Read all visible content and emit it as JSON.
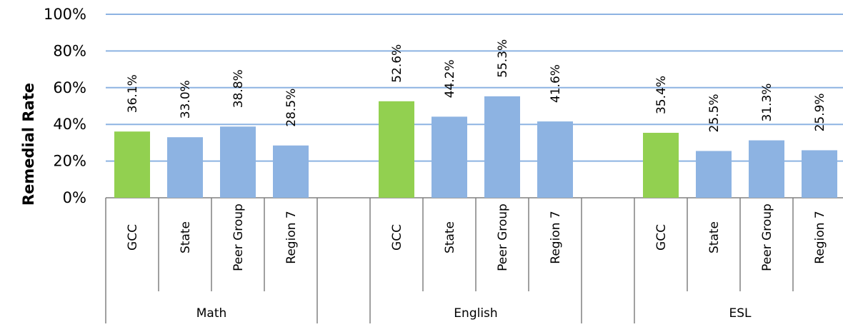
{
  "chart_data": {
    "type": "bar",
    "ylabel": "Remedial Rate",
    "ylim": [
      0,
      100
    ],
    "yticks": [
      0,
      20,
      40,
      60,
      80,
      100
    ],
    "ytick_labels": [
      "0%",
      "20%",
      "40%",
      "60%",
      "80%",
      "100%"
    ],
    "grid": true,
    "groups": [
      {
        "name": "Math",
        "bars": [
          {
            "category": "GCC",
            "value": 36.1,
            "label": "36.1%"
          },
          {
            "category": "State",
            "value": 33.0,
            "label": "33.0%"
          },
          {
            "category": "Peer Group",
            "value": 38.8,
            "label": "38.8%"
          },
          {
            "category": "Region 7",
            "value": 28.5,
            "label": "28.5%"
          }
        ]
      },
      {
        "name": "English",
        "bars": [
          {
            "category": "GCC",
            "value": 52.6,
            "label": "52.6%"
          },
          {
            "category": "State",
            "value": 44.2,
            "label": "44.2%"
          },
          {
            "category": "Peer Group",
            "value": 55.3,
            "label": "55.3%"
          },
          {
            "category": "Region 7",
            "value": 41.6,
            "label": "41.6%"
          }
        ]
      },
      {
        "name": "ESL",
        "bars": [
          {
            "category": "GCC",
            "value": 35.4,
            "label": "35.4%"
          },
          {
            "category": "State",
            "value": 25.5,
            "label": "25.5%"
          },
          {
            "category": "Peer Group",
            "value": 31.3,
            "label": "31.3%"
          },
          {
            "category": "Region 7",
            "value": 25.9,
            "label": "25.9%"
          }
        ]
      }
    ],
    "colors": {
      "highlight": "#92d050",
      "bar": "#8db3e2",
      "grid": "#8db3e2",
      "axis": "#808080"
    },
    "highlight_category": "GCC"
  }
}
